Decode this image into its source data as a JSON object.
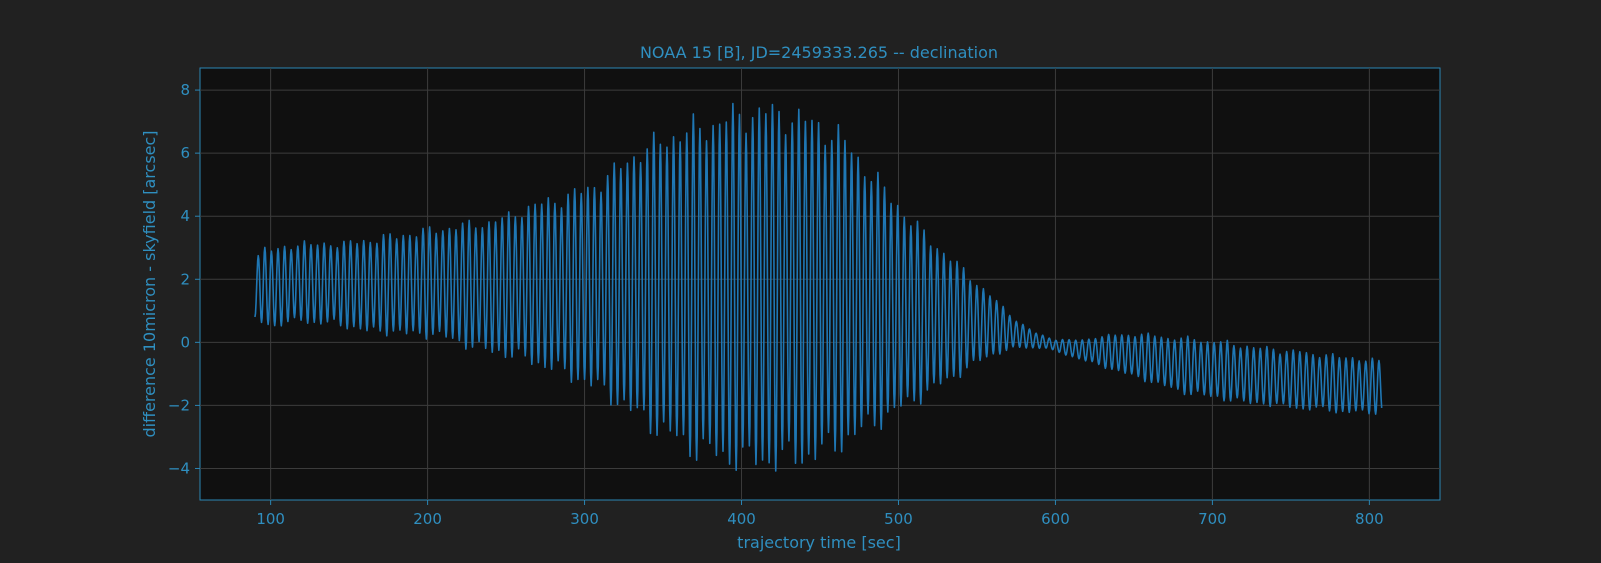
{
  "chart_data": {
    "type": "line",
    "title": "NOAA 15 [B], JD=2459333.265 -- declination",
    "xlabel": "trajectory time [sec]",
    "ylabel": "difference 10micron - skyfield [arcsec]",
    "xlim": [
      55,
      845
    ],
    "ylim": [
      -5,
      8.7
    ],
    "xticks": [
      100,
      200,
      300,
      400,
      500,
      600,
      700,
      800
    ],
    "yticks": [
      -4,
      -2,
      0,
      2,
      4,
      6,
      8
    ],
    "xtick_labels": [
      "100",
      "200",
      "300",
      "400",
      "500",
      "600",
      "700",
      "800"
    ],
    "ytick_labels": [
      "−4",
      "−2",
      "0",
      "2",
      "4",
      "6",
      "8"
    ],
    "grid": true,
    "series_color": "#1f77b4",
    "axis_text_color": "#2f8fc0",
    "series": [
      {
        "x": [
          90,
          96,
          102,
          108,
          114,
          120,
          126,
          132,
          138,
          144,
          150,
          156,
          162,
          168,
          174,
          180,
          186,
          192,
          198,
          204,
          210,
          216,
          222,
          228,
          234,
          240,
          246,
          252,
          258,
          264,
          270,
          276,
          282,
          288,
          294,
          300,
          306,
          312,
          318,
          324,
          330,
          336,
          342,
          348,
          354,
          360,
          366,
          372,
          378,
          384,
          390,
          396,
          402,
          408,
          414,
          420,
          426,
          432,
          438,
          444,
          450,
          456,
          462,
          468,
          474,
          480,
          486,
          492,
          498,
          504,
          510,
          516,
          522,
          528,
          534,
          540,
          546,
          552,
          558,
          564,
          570,
          576,
          582,
          588,
          594,
          600,
          606,
          612,
          618,
          624,
          630,
          636,
          642,
          648,
          654,
          660,
          666,
          672,
          678,
          684,
          690,
          696,
          702,
          708,
          714,
          720,
          726,
          732,
          738,
          744,
          750,
          756,
          762,
          768,
          774,
          780,
          786,
          792,
          798,
          804,
          808
        ],
        "upper": [
          2.8,
          3.1,
          3.0,
          3.1,
          3.2,
          3.3,
          3.2,
          3.2,
          3.3,
          3.2,
          3.3,
          3.3,
          3.4,
          3.4,
          3.5,
          3.5,
          3.6,
          3.6,
          3.7,
          3.7,
          3.8,
          3.8,
          3.9,
          3.9,
          4.0,
          4.0,
          4.1,
          4.2,
          4.4,
          4.5,
          4.6,
          4.7,
          4.8,
          4.9,
          5.0,
          5.1,
          5.3,
          5.5,
          5.7,
          6.0,
          6.3,
          6.5,
          6.6,
          6.8,
          7.0,
          7.1,
          7.2,
          7.3,
          7.4,
          7.5,
          7.6,
          7.7,
          7.8,
          7.8,
          7.9,
          7.8,
          7.8,
          7.7,
          7.6,
          7.5,
          7.4,
          7.2,
          7.0,
          6.7,
          6.3,
          5.9,
          5.5,
          5.1,
          4.8,
          4.4,
          4.0,
          3.7,
          3.4,
          3.1,
          2.8,
          2.5,
          2.2,
          1.9,
          1.6,
          1.3,
          1.0,
          0.7,
          0.5,
          0.3,
          0.2,
          0.1,
          0.1,
          0.1,
          0.1,
          0.2,
          0.2,
          0.3,
          0.3,
          0.3,
          0.3,
          0.3,
          0.3,
          0.2,
          0.2,
          0.2,
          0.2,
          0.1,
          0.1,
          0.1,
          0.0,
          0.0,
          -0.1,
          -0.1,
          -0.1,
          -0.2,
          -0.2,
          -0.2,
          -0.3,
          -0.3,
          -0.3,
          -0.4,
          -0.4,
          -0.4,
          -0.5,
          -0.5,
          -0.5
        ],
        "lower": [
          0.6,
          0.5,
          0.4,
          0.5,
          0.5,
          0.6,
          0.5,
          0.5,
          0.5,
          0.4,
          0.4,
          0.3,
          0.2,
          0.2,
          0.2,
          0.2,
          0.1,
          0.1,
          0.1,
          0.1,
          0.0,
          -0.1,
          -0.2,
          -0.3,
          -0.4,
          -0.5,
          -0.5,
          -0.6,
          -0.7,
          -0.8,
          -0.9,
          -1.0,
          -1.1,
          -1.3,
          -1.4,
          -1.5,
          -1.7,
          -1.9,
          -2.1,
          -2.3,
          -2.6,
          -2.8,
          -3.0,
          -3.2,
          -3.4,
          -3.6,
          -3.8,
          -3.9,
          -4.0,
          -4.1,
          -4.2,
          -4.2,
          -4.3,
          -4.3,
          -4.3,
          -4.3,
          -4.3,
          -4.2,
          -4.2,
          -4.1,
          -4.0,
          -3.9,
          -3.7,
          -3.5,
          -3.3,
          -3.1,
          -2.9,
          -2.7,
          -2.5,
          -2.3,
          -2.1,
          -1.9,
          -1.7,
          -1.5,
          -1.3,
          -1.1,
          -0.9,
          -0.7,
          -0.5,
          -0.4,
          -0.3,
          -0.2,
          -0.2,
          -0.2,
          -0.2,
          -0.3,
          -0.4,
          -0.5,
          -0.6,
          -0.7,
          -0.8,
          -0.9,
          -1.0,
          -1.1,
          -1.2,
          -1.3,
          -1.4,
          -1.5,
          -1.6,
          -1.7,
          -1.7,
          -1.8,
          -1.8,
          -1.9,
          -1.9,
          -2.0,
          -2.0,
          -2.0,
          -2.1,
          -2.1,
          -2.1,
          -2.2,
          -2.2,
          -2.2,
          -2.2,
          -2.3,
          -2.3,
          -2.3,
          -2.3,
          -2.3,
          -2.3
        ]
      }
    ]
  }
}
